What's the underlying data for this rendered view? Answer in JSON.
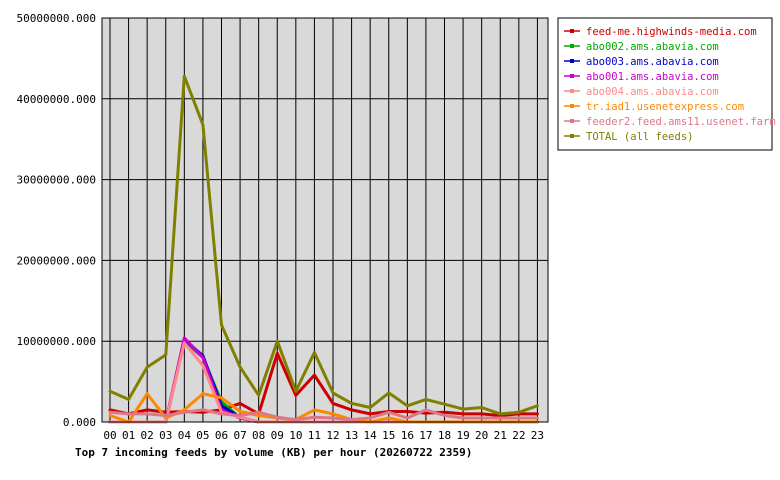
{
  "chart_data": {
    "type": "line",
    "title": "Top 7 incoming feeds by volume (KB) per hour (20260722 2359)",
    "xlabel": "",
    "ylabel": "",
    "ylim": [
      0,
      50000000
    ],
    "y_ticks": [
      "0.000",
      "10000000.000",
      "20000000.000",
      "30000000.000",
      "40000000.000",
      "50000000.000"
    ],
    "categories": [
      "00",
      "01",
      "02",
      "03",
      "04",
      "05",
      "06",
      "07",
      "08",
      "09",
      "10",
      "11",
      "12",
      "13",
      "14",
      "15",
      "16",
      "17",
      "18",
      "19",
      "20",
      "21",
      "22",
      "23"
    ],
    "grid": true,
    "legend_position": "top-right",
    "series": [
      {
        "name": "feed-me.highwinds-media.com",
        "color": "#cc0000",
        "values": [
          1500000,
          1000000,
          1500000,
          1200000,
          1300000,
          1200000,
          1500000,
          2300000,
          1000000,
          8500000,
          3300000,
          5800000,
          2300000,
          1500000,
          1000000,
          1300000,
          1300000,
          1100000,
          1200000,
          1000000,
          1000000,
          800000,
          1000000,
          1000000
        ]
      },
      {
        "name": "abo002.ams.abavia.com",
        "color": "#00aa00",
        "values": [
          0,
          0,
          0,
          0,
          10000000,
          8000000,
          2500000,
          500000,
          0,
          0,
          0,
          0,
          0,
          0,
          0,
          0,
          0,
          0,
          0,
          0,
          0,
          0,
          0,
          0
        ]
      },
      {
        "name": "abo003.ams.abavia.com",
        "color": "#0000cc",
        "values": [
          0,
          0,
          0,
          0,
          10200000,
          8200000,
          2000000,
          600000,
          0,
          0,
          0,
          0,
          0,
          0,
          0,
          0,
          0,
          0,
          0,
          0,
          0,
          0,
          0,
          0
        ]
      },
      {
        "name": "abo001.ams.abavia.com",
        "color": "#cc00cc",
        "values": [
          0,
          0,
          0,
          0,
          10400000,
          8000000,
          1500000,
          500000,
          0,
          0,
          0,
          0,
          0,
          0,
          0,
          0,
          0,
          0,
          0,
          0,
          0,
          0,
          0,
          0
        ]
      },
      {
        "name": "abo004.ams.abavia.com",
        "color": "#ff8888",
        "values": [
          0,
          0,
          0,
          0,
          9800000,
          7000000,
          1200000,
          600000,
          0,
          0,
          0,
          0,
          0,
          0,
          0,
          0,
          0,
          0,
          0,
          0,
          0,
          0,
          0,
          0
        ]
      },
      {
        "name": "tr.iad1.usenetexpress.com",
        "color": "#ff8800",
        "values": [
          800000,
          0,
          3500000,
          500000,
          1500000,
          3500000,
          3000000,
          1300000,
          800000,
          500000,
          300000,
          1500000,
          1000000,
          300000,
          0,
          500000,
          0,
          0,
          0,
          0,
          0,
          0,
          0,
          0
        ]
      },
      {
        "name": "feeder2.feed.ams11.usenet.farm",
        "color": "#dd7788",
        "values": [
          1200000,
          1000000,
          1000000,
          800000,
          1200000,
          1500000,
          1000000,
          800000,
          1200000,
          600000,
          300000,
          600000,
          500000,
          300000,
          500000,
          1200000,
          500000,
          1500000,
          800000,
          500000,
          500000,
          500000,
          500000,
          500000
        ]
      },
      {
        "name": "TOTAL (all feeds)",
        "color": "#808000",
        "values": [
          3800000,
          2800000,
          6800000,
          8300000,
          42800000,
          36800000,
          12000000,
          6800000,
          3300000,
          10000000,
          3800000,
          8600000,
          3600000,
          2300000,
          1800000,
          3600000,
          2000000,
          2800000,
          2200000,
          1600000,
          1800000,
          1000000,
          1200000,
          2000000
        ]
      }
    ]
  }
}
